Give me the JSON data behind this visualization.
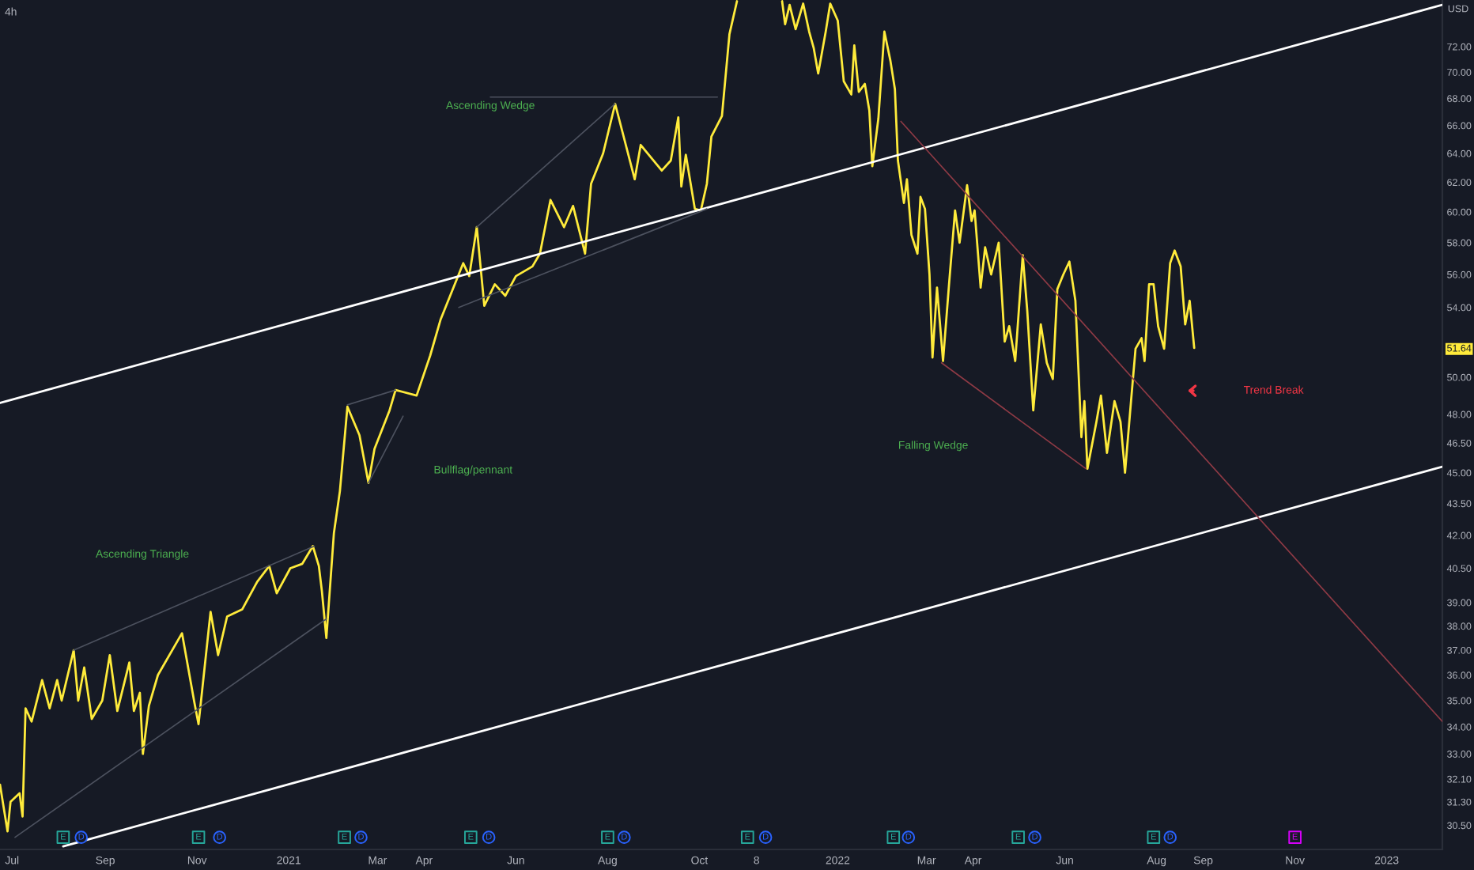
{
  "chart_data": {
    "type": "line",
    "title": "4h",
    "ylabel": "USD",
    "log": true,
    "marker": "none",
    "line_style": "solid",
    "xlim": [
      "2020-06-23",
      "2023-02-07"
    ],
    "xticks": [
      {
        "value": "2020-07-01",
        "label": "Jul"
      },
      {
        "value": "2020-09-01",
        "label": "Sep"
      },
      {
        "value": "2020-11-01",
        "label": "Nov"
      },
      {
        "value": "2021-01-01",
        "label": "2021"
      },
      {
        "value": "2021-03-01",
        "label": "Mar"
      },
      {
        "value": "2021-04-01",
        "label": "Apr"
      },
      {
        "value": "2021-06-01",
        "label": "Jun"
      },
      {
        "value": "2021-08-01",
        "label": "Aug"
      },
      {
        "value": "2021-10-01",
        "label": "Oct"
      },
      {
        "value": "2021-11-08",
        "label": "8"
      },
      {
        "value": "2022-01-01",
        "label": "2022"
      },
      {
        "value": "2022-03-01",
        "label": "Mar"
      },
      {
        "value": "2022-04-01",
        "label": "Apr"
      },
      {
        "value": "2022-06-01",
        "label": "Jun"
      },
      {
        "value": "2022-08-01",
        "label": "Aug"
      },
      {
        "value": "2022-09-01",
        "label": "Sep"
      },
      {
        "value": "2022-11-01",
        "label": "Nov"
      },
      {
        "value": "2023-01-01",
        "label": "2023"
      }
    ],
    "ylim": [
      29.7,
      75.8
    ],
    "yticks": [
      {
        "value": 72,
        "label": "72.00"
      },
      {
        "value": 70,
        "label": "70.00"
      },
      {
        "value": 68,
        "label": "68.00"
      },
      {
        "value": 66,
        "label": "66.00"
      },
      {
        "value": 64,
        "label": "64.00"
      },
      {
        "value": 62,
        "label": "62.00"
      },
      {
        "value": 60,
        "label": "60.00"
      },
      {
        "value": 58,
        "label": "58.00"
      },
      {
        "value": 56,
        "label": "56.00"
      },
      {
        "value": 54,
        "label": "54.00"
      },
      51.64,
      {
        "value": 50,
        "label": "50.00"
      },
      {
        "value": 48,
        "label": "48.00"
      },
      {
        "value": 46.5,
        "label": "46.50"
      },
      {
        "value": 45,
        "label": "45.00"
      },
      {
        "value": 43.5,
        "label": "43.50"
      },
      {
        "value": 42,
        "label": "42.00"
      },
      {
        "value": 40.5,
        "label": "40.50"
      },
      {
        "value": 39,
        "label": "39.00"
      },
      {
        "value": 38,
        "label": "38.00"
      },
      {
        "value": 37,
        "label": "37.00"
      },
      {
        "value": 36,
        "label": "36.00"
      },
      {
        "value": 35,
        "label": "35.00"
      },
      {
        "value": 34,
        "label": "34.00"
      },
      {
        "value": 33,
        "label": "33.00"
      },
      {
        "value": 32.1,
        "label": "32.10"
      },
      {
        "value": 31.3,
        "label": "31.30"
      },
      {
        "value": 30.5,
        "label": "30.50"
      }
    ],
    "annotations": [
      "Ascending Triangle",
      "Bullflag/pennant",
      "Ascending Wedge",
      "Falling Wedge",
      "Trend Break"
    ],
    "series": [
      {
        "color": "#ffeb3b",
        "x": [
          "2020-06-23",
          "2020-06-28",
          "2020-06-30",
          "2020-07-06",
          "2020-07-08",
          "2020-07-10",
          "2020-07-14",
          "2020-07-21",
          "2020-07-26",
          "2020-07-31",
          "2020-08-03",
          "2020-08-11",
          "2020-08-14",
          "2020-08-18",
          "2020-08-23",
          "2020-08-30",
          "2020-09-04",
          "2020-09-09",
          "2020-09-17",
          "2020-09-20",
          "2020-09-24",
          "2020-09-26",
          "2020-09-30",
          "2020-10-06",
          "2020-10-22",
          "2020-10-30",
          "2020-11-02",
          "2020-11-10",
          "2020-11-15",
          "2020-11-21",
          "2020-12-01",
          "2020-12-11",
          "2020-12-19",
          "2020-12-24",
          "2021-01-02",
          "2021-01-10",
          "2021-01-17",
          "2021-01-21",
          "2021-01-23",
          "2021-01-26",
          "2021-01-31",
          "2021-02-04",
          "2021-02-09",
          "2021-02-17",
          "2021-02-23",
          "2021-02-27",
          "2021-03-09",
          "2021-03-13",
          "2021-03-27",
          "2021-04-05",
          "2021-04-12",
          "2021-04-24",
          "2021-04-27",
          "2021-05-01",
          "2021-05-06",
          "2021-05-11",
          "2021-05-18",
          "2021-05-25",
          "2021-06-01",
          "2021-06-12",
          "2021-06-17",
          "2021-06-24",
          "2021-07-03",
          "2021-07-09",
          "2021-07-17",
          "2021-07-21",
          "2021-07-29",
          "2021-08-06",
          "2021-08-19",
          "2021-08-23",
          "2021-09-06",
          "2021-09-12",
          "2021-09-17",
          "2021-09-19",
          "2021-09-22",
          "2021-09-28",
          "2021-10-02",
          "2021-10-06",
          "2021-10-09",
          "2021-10-16",
          "2021-10-21",
          "2021-10-26",
          "2021-11-10",
          "2021-11-25",
          "2021-11-27",
          "2021-11-30",
          "2021-12-04",
          "2021-12-09",
          "2021-12-13",
          "2021-12-16",
          "2021-12-19",
          "2021-12-24",
          "2021-12-27",
          "2022-01-01",
          "2022-01-05",
          "2022-01-10",
          "2022-01-12",
          "2022-01-15",
          "2022-01-19",
          "2022-01-22",
          "2022-01-24",
          "2022-01-28",
          "2022-02-01",
          "2022-02-05",
          "2022-02-08",
          "2022-02-10",
          "2022-02-14",
          "2022-02-16",
          "2022-02-19",
          "2022-02-23",
          "2022-02-25",
          "2022-02-28",
          "2022-03-03",
          "2022-03-05",
          "2022-03-08",
          "2022-03-12",
          "2022-03-16",
          "2022-03-20",
          "2022-03-23",
          "2022-03-28",
          "2022-03-31",
          "2022-04-02",
          "2022-04-06",
          "2022-04-09",
          "2022-04-13",
          "2022-04-18",
          "2022-04-22",
          "2022-04-25",
          "2022-04-29",
          "2022-05-04",
          "2022-05-07",
          "2022-05-11",
          "2022-05-16",
          "2022-05-20",
          "2022-05-24",
          "2022-05-27",
          "2022-05-31",
          "2022-06-04",
          "2022-06-08",
          "2022-06-12",
          "2022-06-14",
          "2022-06-16",
          "2022-06-22",
          "2022-06-25",
          "2022-06-29",
          "2022-07-04",
          "2022-07-08",
          "2022-07-11",
          "2022-07-15",
          "2022-07-18",
          "2022-07-22",
          "2022-07-24",
          "2022-07-27",
          "2022-07-30",
          "2022-08-02",
          "2022-08-06",
          "2022-08-10",
          "2022-08-13",
          "2022-08-17",
          "2022-08-20",
          "2022-08-23",
          "2022-08-26"
        ],
        "values": [
          31.9,
          30.3,
          31.3,
          31.6,
          30.8,
          34.7,
          34.2,
          35.8,
          34.7,
          35.8,
          35.0,
          37.0,
          35.0,
          36.3,
          34.3,
          35.0,
          36.8,
          34.6,
          36.5,
          34.6,
          35.3,
          33.0,
          34.8,
          36.0,
          37.7,
          35.0,
          34.1,
          38.6,
          36.8,
          38.4,
          38.7,
          39.9,
          40.6,
          39.4,
          40.5,
          40.7,
          41.5,
          40.6,
          39.5,
          37.5,
          42.1,
          44.1,
          48.4,
          46.9,
          44.5,
          46.2,
          48.2,
          49.3,
          49.0,
          51.2,
          53.3,
          56.0,
          56.7,
          55.9,
          59.0,
          54.1,
          55.4,
          54.7,
          55.9,
          56.5,
          57.3,
          60.8,
          59.0,
          60.4,
          57.3,
          61.9,
          64.0,
          67.6,
          62.2,
          64.6,
          62.8,
          63.5,
          66.6,
          61.7,
          63.9,
          60.2,
          60.1,
          61.9,
          65.2,
          66.7,
          73.0,
          75.7,
          null,
          75.7,
          73.8,
          75.4,
          73.4,
          75.5,
          73.2,
          71.9,
          69.9,
          73.2,
          75.5,
          74.1,
          69.3,
          68.3,
          72.1,
          68.5,
          69.1,
          67.1,
          63.1,
          66.5,
          73.2,
          70.9,
          68.7,
          63.5,
          60.6,
          62.2,
          58.5,
          57.3,
          61.0,
          60.2,
          56.0,
          51.1,
          55.2,
          50.9,
          55.4,
          60.1,
          58.0,
          61.8,
          59.4,
          60.1,
          55.2,
          57.7,
          56.0,
          58.0,
          52.0,
          52.9,
          50.9,
          57.2,
          53.8,
          48.2,
          53.0,
          50.8,
          49.9,
          55.1,
          56.0,
          56.8,
          54.4,
          46.8,
          48.7,
          45.2,
          47.6,
          49.0,
          46.0,
          48.7,
          47.6,
          45.0,
          48.7,
          51.6,
          52.2,
          50.9,
          55.4,
          55.4,
          52.9,
          51.6,
          56.7,
          57.5,
          56.5,
          53.0,
          54.4,
          51.64
        ]
      },
      {
        "color": "#ffffff",
        "x": [
          "2020-06-23",
          "2023-02-07"
        ],
        "values": [
          48.6,
          75.4
        ]
      },
      {
        "color": "#ffffff",
        "x": [
          "2020-08-04",
          "2023-02-07"
        ],
        "values": [
          29.8,
          45.3
        ]
      },
      {
        "color": "#4c515e",
        "x": [
          "2020-08-11",
          "2021-01-18"
        ],
        "values": [
          37.0,
          41.5
        ]
      },
      {
        "color": "#4c515e",
        "x": [
          "2020-07-03",
          "2021-01-26"
        ],
        "values": [
          30.1,
          38.3
        ]
      },
      {
        "color": "#4c515e",
        "x": [
          "2021-02-09",
          "2021-03-13"
        ],
        "values": [
          48.5,
          49.3
        ]
      },
      {
        "color": "#4c515e",
        "x": [
          "2021-02-23",
          "2021-03-18"
        ],
        "values": [
          44.5,
          47.9
        ]
      },
      {
        "color": "#4c515e",
        "x": [
          "2021-05-06",
          "2021-08-06"
        ],
        "values": [
          59.0,
          67.6
        ]
      },
      {
        "color": "#4c515e",
        "x": [
          "2021-05-15",
          "2021-10-13"
        ],
        "values": [
          68.1,
          68.1
        ]
      },
      {
        "color": "#4c515e",
        "x": [
          "2021-04-24",
          "2021-10-06"
        ],
        "values": [
          54.0,
          60.2
        ]
      },
      {
        "color": "#8e3a45",
        "x": [
          "2022-02-12",
          "2023-02-07"
        ],
        "values": [
          66.3,
          34.2
        ]
      },
      {
        "color": "#8e3a45",
        "x": [
          "2022-03-11",
          "2022-06-15"
        ],
        "values": [
          50.8,
          45.2
        ]
      },
      {
        "type": "scatter",
        "marker": "square",
        "color": "#26a69a",
        "x": [
          "2020-08-04",
          "2020-11-02",
          "2021-02-07",
          "2021-05-02",
          "2021-08-01",
          "2021-11-02",
          "2022-02-07",
          "2022-05-01",
          "2022-07-30"
        ],
        "values": [
          30.1,
          30.1,
          30.1,
          30.1,
          30.1,
          30.1,
          30.1,
          30.1,
          30.1
        ],
        "value_labels": [
          "E",
          "E",
          "E",
          "E",
          "E",
          "E",
          "E",
          "E",
          "E"
        ]
      },
      {
        "type": "scatter",
        "marker": "circle",
        "color": "#2962ff",
        "x": [
          "2020-08-16",
          "2020-11-16",
          "2021-02-18",
          "2021-05-14",
          "2021-08-12",
          "2021-11-14",
          "2022-02-17",
          "2022-05-12",
          "2022-08-10"
        ],
        "values": [
          30.1,
          30.1,
          30.1,
          30.1,
          30.1,
          30.1,
          30.1,
          30.1,
          30.1
        ],
        "value_labels": [
          "D",
          "D",
          "D",
          "D",
          "D",
          "D",
          "D",
          "D",
          "D"
        ]
      },
      {
        "type": "scatter",
        "marker": "square",
        "color": "#d500f9",
        "x": [
          "2022-11-01"
        ],
        "values": [
          30.1
        ],
        "value_labels": [
          "E"
        ]
      }
    ]
  }
}
